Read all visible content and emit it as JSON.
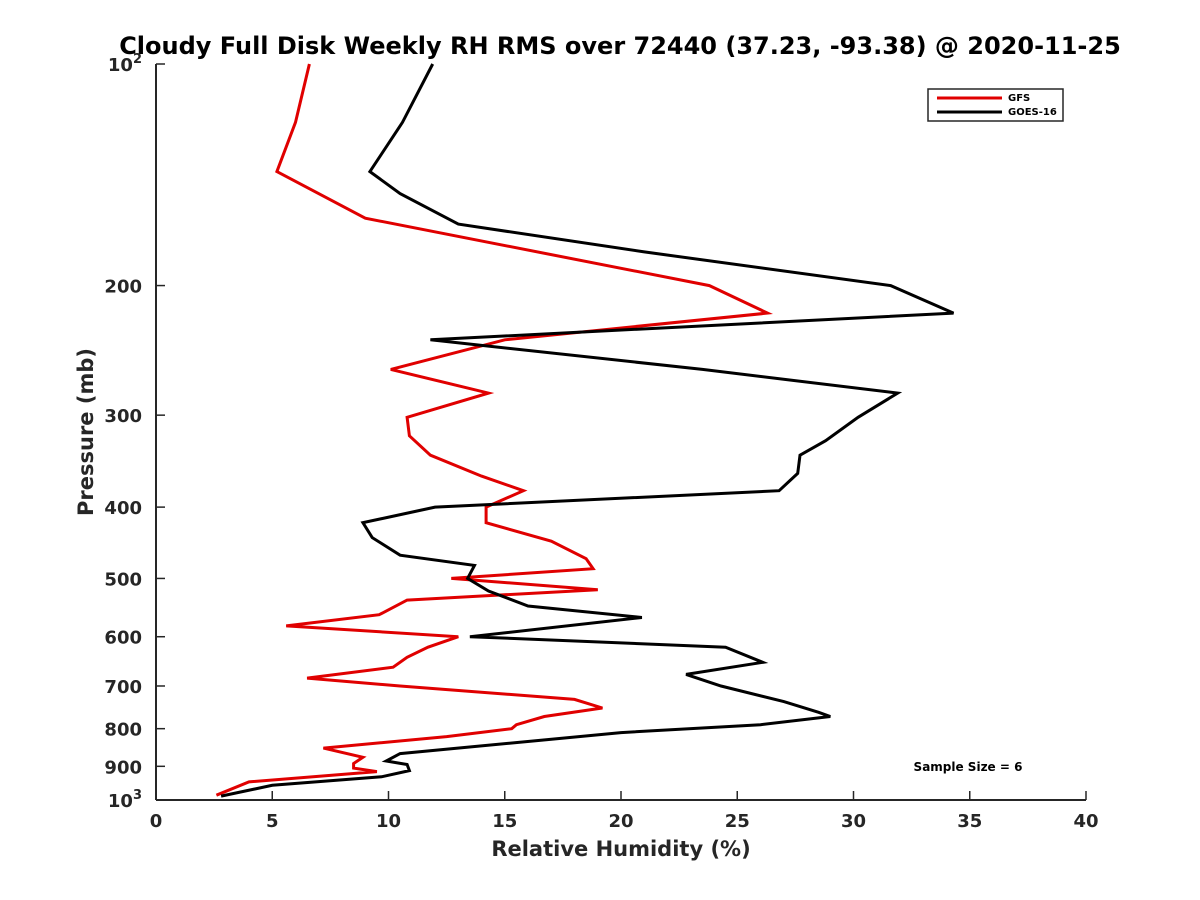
{
  "chart_data": {
    "type": "line",
    "title": "Cloudy Full Disk Weekly RH RMS over 72440 (37.23, -93.38) @ 2020-11-25",
    "xlabel": "Relative Humidity (%)",
    "ylabel": "Pressure (mb)",
    "xlim": [
      0,
      40
    ],
    "ylim": [
      100,
      1000
    ],
    "y_scale": "log",
    "y_reversed": true,
    "x_ticks": [
      "0",
      "5",
      "10",
      "15",
      "20",
      "25",
      "30",
      "35",
      "40"
    ],
    "y_ticks": [
      {
        "value": 100,
        "label": "10",
        "sup": "2"
      },
      {
        "value": 200,
        "label": "200"
      },
      {
        "value": 300,
        "label": "300"
      },
      {
        "value": 400,
        "label": "400"
      },
      {
        "value": 500,
        "label": "500"
      },
      {
        "value": 600,
        "label": "600"
      },
      {
        "value": 700,
        "label": "700"
      },
      {
        "value": 800,
        "label": "800"
      },
      {
        "value": 900,
        "label": "900"
      },
      {
        "value": 1000,
        "label": "10",
        "sup": "3"
      }
    ],
    "grid": false,
    "legend_position": "top-right",
    "annotation": "Sample Size = 6",
    "series": [
      {
        "name": "GFS",
        "color": "#e00000",
        "points": [
          [
            6.6,
            100
          ],
          [
            6.0,
            120
          ],
          [
            5.2,
            140
          ],
          [
            9.0,
            162
          ],
          [
            23.8,
            200
          ],
          [
            26.3,
            218
          ],
          [
            15.0,
            237
          ],
          [
            10.1,
            260
          ],
          [
            14.3,
            280
          ],
          [
            10.8,
            302
          ],
          [
            10.9,
            320
          ],
          [
            11.8,
            340
          ],
          [
            14.0,
            363
          ],
          [
            15.8,
            380
          ],
          [
            14.2,
            400
          ],
          [
            14.2,
            420
          ],
          [
            17.0,
            445
          ],
          [
            18.5,
            470
          ],
          [
            18.8,
            485
          ],
          [
            12.7,
            500
          ],
          [
            19.0,
            518
          ],
          [
            10.8,
            535
          ],
          [
            9.6,
            560
          ],
          [
            5.6,
            580
          ],
          [
            13.0,
            600
          ],
          [
            11.7,
            620
          ],
          [
            10.8,
            640
          ],
          [
            10.2,
            660
          ],
          [
            6.5,
            683
          ],
          [
            10.5,
            700
          ],
          [
            18.0,
            730
          ],
          [
            19.2,
            750
          ],
          [
            16.7,
            770
          ],
          [
            15.5,
            790
          ],
          [
            15.3,
            800
          ],
          [
            12.5,
            820
          ],
          [
            7.2,
            850
          ],
          [
            8.9,
            875
          ],
          [
            8.5,
            892
          ],
          [
            8.5,
            905
          ],
          [
            9.5,
            915
          ],
          [
            4.0,
            945
          ],
          [
            2.6,
            985
          ]
        ]
      },
      {
        "name": "GOES-16",
        "color": "#000000",
        "points": [
          [
            11.9,
            100
          ],
          [
            10.6,
            120
          ],
          [
            9.2,
            140
          ],
          [
            10.5,
            150
          ],
          [
            13.0,
            165
          ],
          [
            21.0,
            180
          ],
          [
            31.6,
            200
          ],
          [
            34.3,
            218
          ],
          [
            11.8,
            237
          ],
          [
            23.5,
            260
          ],
          [
            31.9,
            280
          ],
          [
            30.2,
            302
          ],
          [
            28.8,
            325
          ],
          [
            27.7,
            340
          ],
          [
            27.6,
            360
          ],
          [
            26.8,
            380
          ],
          [
            12.0,
            400
          ],
          [
            8.9,
            420
          ],
          [
            9.3,
            440
          ],
          [
            10.5,
            465
          ],
          [
            13.7,
            480
          ],
          [
            13.4,
            500
          ],
          [
            14.3,
            520
          ],
          [
            16.0,
            545
          ],
          [
            20.9,
            565
          ],
          [
            13.5,
            600
          ],
          [
            24.5,
            620
          ],
          [
            26.1,
            650
          ],
          [
            22.8,
            675
          ],
          [
            24.3,
            700
          ],
          [
            27.0,
            735
          ],
          [
            28.5,
            760
          ],
          [
            29.0,
            770
          ],
          [
            26.0,
            790
          ],
          [
            20.0,
            810
          ],
          [
            16.5,
            830
          ],
          [
            10.5,
            865
          ],
          [
            9.9,
            885
          ],
          [
            10.8,
            895
          ],
          [
            10.9,
            912
          ],
          [
            9.7,
            930
          ],
          [
            5.0,
            955
          ],
          [
            2.8,
            988
          ]
        ]
      }
    ]
  }
}
